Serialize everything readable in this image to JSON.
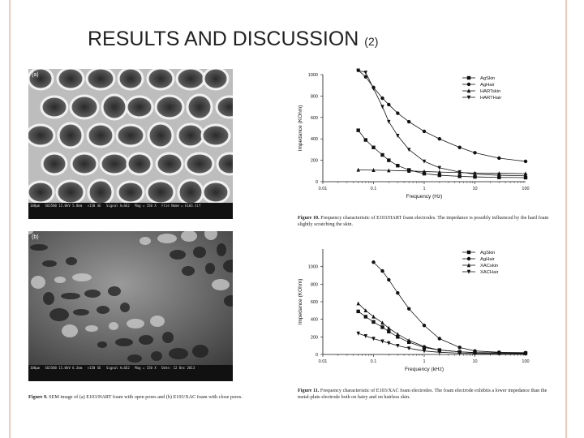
{
  "slide": {
    "title": "RESULTS AND DISCUSSION",
    "title_suffix": "(2)",
    "accent_color": "#f4c9b8"
  },
  "figure9": {
    "panel_a_label": "(a)",
    "panel_b_label": "(b)",
    "panel_a_bar": [
      "100μm",
      "SU3500 15.0kV 5.8mm",
      "×150 SE",
      "Signal A=SE2",
      "Mag = 150 X",
      "File Name = E103.tif"
    ],
    "panel_b_bar": [
      "100μm",
      "SU3500 15.0kV 6.2mm",
      "×150 SE",
      "Signal A=SE2",
      "Mag = 150 X",
      "Date: 12 Dec 2013"
    ],
    "caption_label": "Figure 9.",
    "caption_text": "SEM image of (a) E103/HART foam with open pores and (b) E103/XAC foam with close pores."
  },
  "figure10": {
    "caption_label": "Figure 10.",
    "caption_text": "Frequency characteristic of E103/HART foam electrodes. The impedance is possibly influenced by the hard foam slightly scratching the skin."
  },
  "figure11": {
    "caption_label": "Figure 11.",
    "caption_text": "Frequency characteristic of E103/XAC foam electrodes. The foam electrode exhibits a lower impedance than the metal-plate electrode both on hairy and on hairless skin."
  },
  "chart_data": [
    {
      "type": "line",
      "xlabel": "Frequency (Hz)",
      "ylabel": "Impedance (KOhm)",
      "xscale": "log",
      "xlim": [
        0.01,
        100
      ],
      "ylim": [
        0,
        1000
      ],
      "xticks": [
        "0.01",
        "0.1",
        "1",
        "10",
        "100"
      ],
      "yticks": [
        "0",
        "200",
        "400",
        "600",
        "800",
        "1000"
      ],
      "legend": "top-right",
      "series": [
        {
          "name": "AgSkin",
          "marker": "square",
          "x": [
            0.05,
            0.07,
            0.1,
            0.15,
            0.2,
            0.3,
            0.5,
            1,
            2,
            5,
            10,
            30,
            100
          ],
          "y": [
            480,
            390,
            320,
            250,
            200,
            150,
            110,
            75,
            60,
            50,
            45,
            40,
            38
          ]
        },
        {
          "name": "AgHair",
          "marker": "circle",
          "x": [
            0.05,
            0.07,
            0.1,
            0.15,
            0.2,
            0.3,
            0.5,
            1,
            2,
            5,
            10,
            30,
            100
          ],
          "y": [
            1040,
            980,
            880,
            780,
            720,
            640,
            560,
            470,
            400,
            320,
            270,
            220,
            190
          ]
        },
        {
          "name": "HARTskin",
          "marker": "triangle",
          "x": [
            0.05,
            0.1,
            0.2,
            0.5,
            1,
            2,
            5,
            10,
            30,
            100
          ],
          "y": [
            110,
            108,
            105,
            100,
            95,
            90,
            85,
            80,
            78,
            75
          ]
        },
        {
          "name": "HARTHair",
          "marker": "triangle-down",
          "x": [
            0.05,
            0.07,
            0.1,
            0.15,
            0.2,
            0.3,
            0.5,
            1,
            2,
            5,
            10,
            30,
            100
          ],
          "y": [
            1040,
            1020,
            870,
            700,
            560,
            430,
            300,
            190,
            130,
            90,
            70,
            60,
            55
          ]
        }
      ]
    },
    {
      "type": "line",
      "xlabel": "Frequency (kHz)",
      "ylabel": "Impedance (KOhm)",
      "xscale": "log",
      "xlim": [
        0.01,
        100
      ],
      "ylim": [
        0,
        1200
      ],
      "xticks": [
        "0.01",
        "0.1",
        "1",
        "10",
        "100"
      ],
      "yticks": [
        "0",
        "200",
        "400",
        "600",
        "800",
        "1000"
      ],
      "legend": "top-right",
      "series": [
        {
          "name": "AgSkin",
          "marker": "square",
          "x": [
            0.05,
            0.07,
            0.1,
            0.15,
            0.2,
            0.3,
            0.5,
            1,
            2,
            5,
            10,
            30,
            100
          ],
          "y": [
            490,
            430,
            370,
            310,
            260,
            200,
            140,
            80,
            50,
            30,
            22,
            18,
            15
          ]
        },
        {
          "name": "AgHair",
          "marker": "circle",
          "x": [
            0.1,
            0.15,
            0.2,
            0.3,
            0.5,
            1,
            2,
            5,
            10,
            30,
            100
          ],
          "y": [
            1050,
            950,
            850,
            700,
            520,
            330,
            180,
            80,
            40,
            25,
            20
          ]
        },
        {
          "name": "XACskin",
          "marker": "triangle",
          "x": [
            0.05,
            0.07,
            0.1,
            0.15,
            0.2,
            0.3,
            0.5,
            1,
            2,
            5,
            10,
            30,
            100
          ],
          "y": [
            580,
            500,
            430,
            360,
            300,
            230,
            160,
            90,
            50,
            30,
            20,
            15,
            12
          ]
        },
        {
          "name": "XACHair",
          "marker": "triangle-down",
          "x": [
            0.05,
            0.07,
            0.1,
            0.15,
            0.2,
            0.3,
            0.5,
            1,
            2,
            5,
            10,
            30,
            100
          ],
          "y": [
            240,
            210,
            180,
            150,
            130,
            100,
            70,
            40,
            25,
            15,
            10,
            8,
            6
          ]
        }
      ]
    }
  ]
}
